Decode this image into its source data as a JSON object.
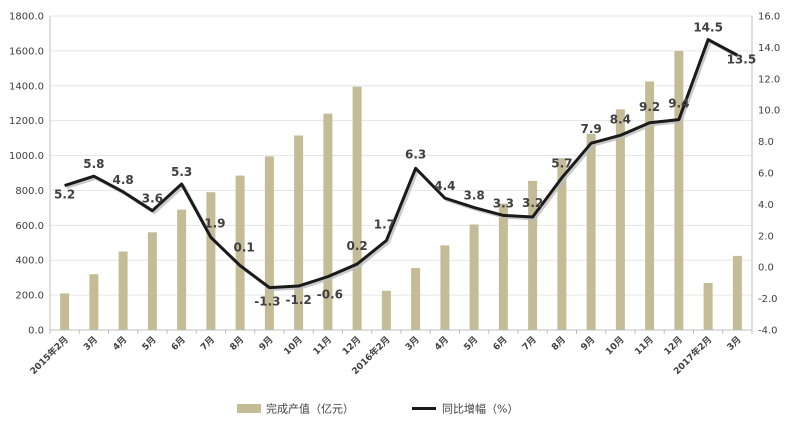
{
  "chart_data": {
    "type": "bar",
    "categories": [
      "2015年2月",
      "3月",
      "4月",
      "5月",
      "6月",
      "7月",
      "8月",
      "9月",
      "10月",
      "11月",
      "12月",
      "2016年2月",
      "3月",
      "4月",
      "5月",
      "6月",
      "7月",
      "8月",
      "9月",
      "10月",
      "11月",
      "12月",
      "2017年2月",
      "3月"
    ],
    "series": [
      {
        "name": "完成产值（亿元）",
        "type": "bar",
        "axis": "left",
        "color": "#c4bc96",
        "values": [
          210,
          320,
          450,
          560,
          690,
          790,
          885,
          995,
          1115,
          1240,
          1395,
          225,
          355,
          485,
          605,
          725,
          855,
          985,
          1125,
          1265,
          1425,
          1600,
          270,
          425
        ]
      },
      {
        "name": "同比增幅（%）",
        "type": "line",
        "axis": "right",
        "color": "#1a1a1a",
        "values": [
          5.2,
          5.8,
          4.8,
          3.6,
          5.3,
          1.9,
          0.1,
          -1.3,
          -1.2,
          -0.6,
          0.2,
          1.7,
          6.3,
          4.4,
          3.8,
          3.3,
          3.2,
          5.7,
          7.9,
          8.4,
          9.2,
          9.4,
          14.5,
          13.5
        ],
        "labels": [
          "5.2",
          "5.8",
          "4.8",
          "3.6",
          "5.3",
          "1.9",
          "0.1",
          "-1.3",
          "-1.2",
          "-0.6",
          "0.2",
          "1.7",
          "6.3",
          "4.4",
          "3.8",
          "3.3",
          "3.2",
          "5.7",
          "7.9",
          "8.4",
          "9.2",
          "9.4",
          "14.5",
          "13.5"
        ]
      }
    ],
    "ylim_left": [
      0,
      1800
    ],
    "yticks_left": [
      "0.0",
      "200.0",
      "400.0",
      "600.0",
      "800.0",
      "1000.0",
      "1200.0",
      "1400.0",
      "1600.0",
      "1800.0"
    ],
    "ylim_right": [
      -4,
      16
    ],
    "yticks_right": [
      "-4.0",
      "-2.0",
      "0.0",
      "2.0",
      "4.0",
      "6.0",
      "8.0",
      "10.0",
      "12.0",
      "14.0",
      "16.0"
    ],
    "grid": true,
    "legend_position": "bottom"
  }
}
